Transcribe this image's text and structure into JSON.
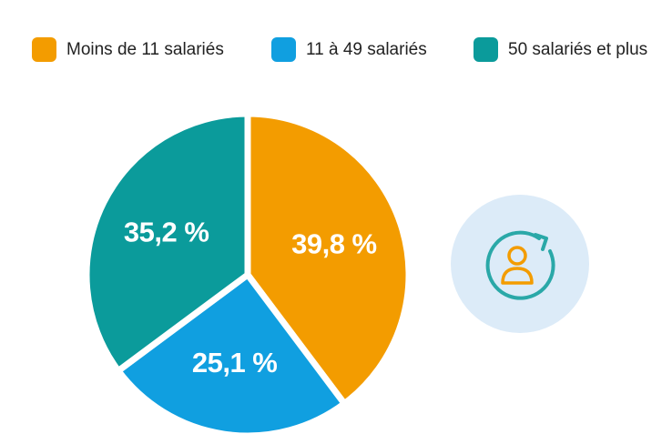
{
  "chart_data": {
    "type": "pie",
    "categories": [
      "Moins de 11 salariés",
      "11 à 49 salariés",
      "50 salariés et plus"
    ],
    "values": [
      39.8,
      25.1,
      35.2
    ],
    "value_labels": [
      "39,8 %",
      "25,1 %",
      "35,2 %"
    ],
    "colors": [
      "#f39c00",
      "#109fe0",
      "#0b9b9b"
    ],
    "legend": "top"
  }
}
